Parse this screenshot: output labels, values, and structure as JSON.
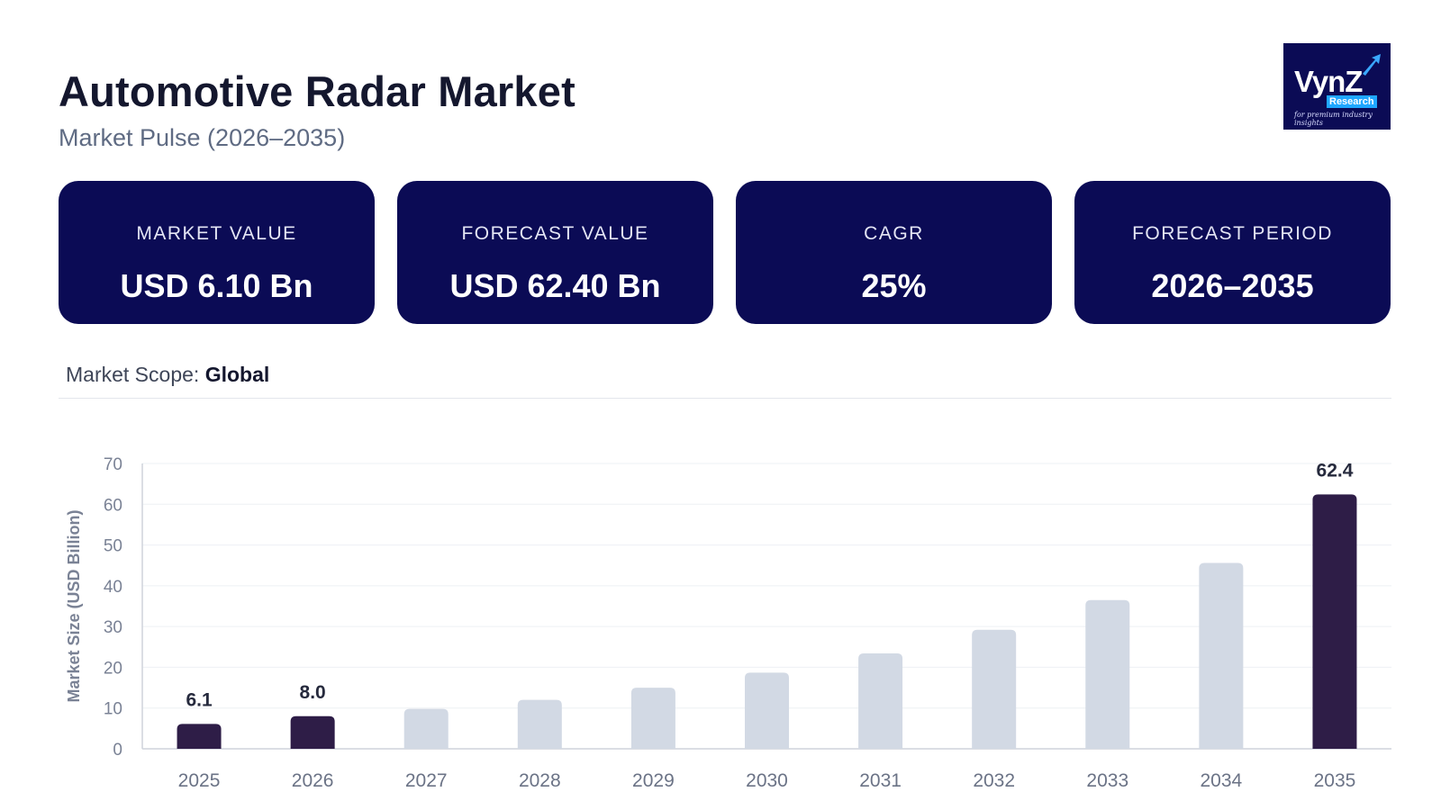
{
  "header": {
    "title": "Automotive Radar Market",
    "subtitle": "Market Pulse (2026–2035)"
  },
  "logo": {
    "brand": "VynZ",
    "tagline_word": "Research",
    "tagline": "for premium industry insights"
  },
  "cards": [
    {
      "label": "MARKET VALUE",
      "value": "USD 6.10 Bn"
    },
    {
      "label": "FORECAST VALUE",
      "value": "USD 62.40 Bn"
    },
    {
      "label": "CAGR",
      "value": "25%"
    },
    {
      "label": "FORECAST PERIOD",
      "value": "2026–2035"
    }
  ],
  "scope": {
    "label": "Market Scope:",
    "value": "Global"
  },
  "colors": {
    "navy": "#0b0b55",
    "highlight_bar": "#2e1d47",
    "muted_bar": "#d2d9e4"
  },
  "chart_data": {
    "type": "bar",
    "categories": [
      "2025",
      "2026",
      "2027",
      "2028",
      "2029",
      "2030",
      "2031",
      "2032",
      "2033",
      "2034",
      "2035"
    ],
    "values": [
      6.1,
      8.0,
      9.8,
      12.0,
      15.0,
      18.7,
      23.4,
      29.2,
      36.5,
      45.6,
      62.4
    ],
    "highlighted": [
      true,
      true,
      false,
      false,
      false,
      false,
      false,
      false,
      false,
      false,
      true
    ],
    "data_labels": [
      "6.1",
      "8.0",
      "",
      "",
      "",
      "",
      "",
      "",
      "",
      "",
      "62.4"
    ],
    "ylabel": "Market Size (USD Billion)",
    "xlabel": "",
    "ylim": [
      0,
      70
    ],
    "yticks": [
      0,
      10,
      20,
      30,
      40,
      50,
      60,
      70
    ],
    "grid": true
  }
}
